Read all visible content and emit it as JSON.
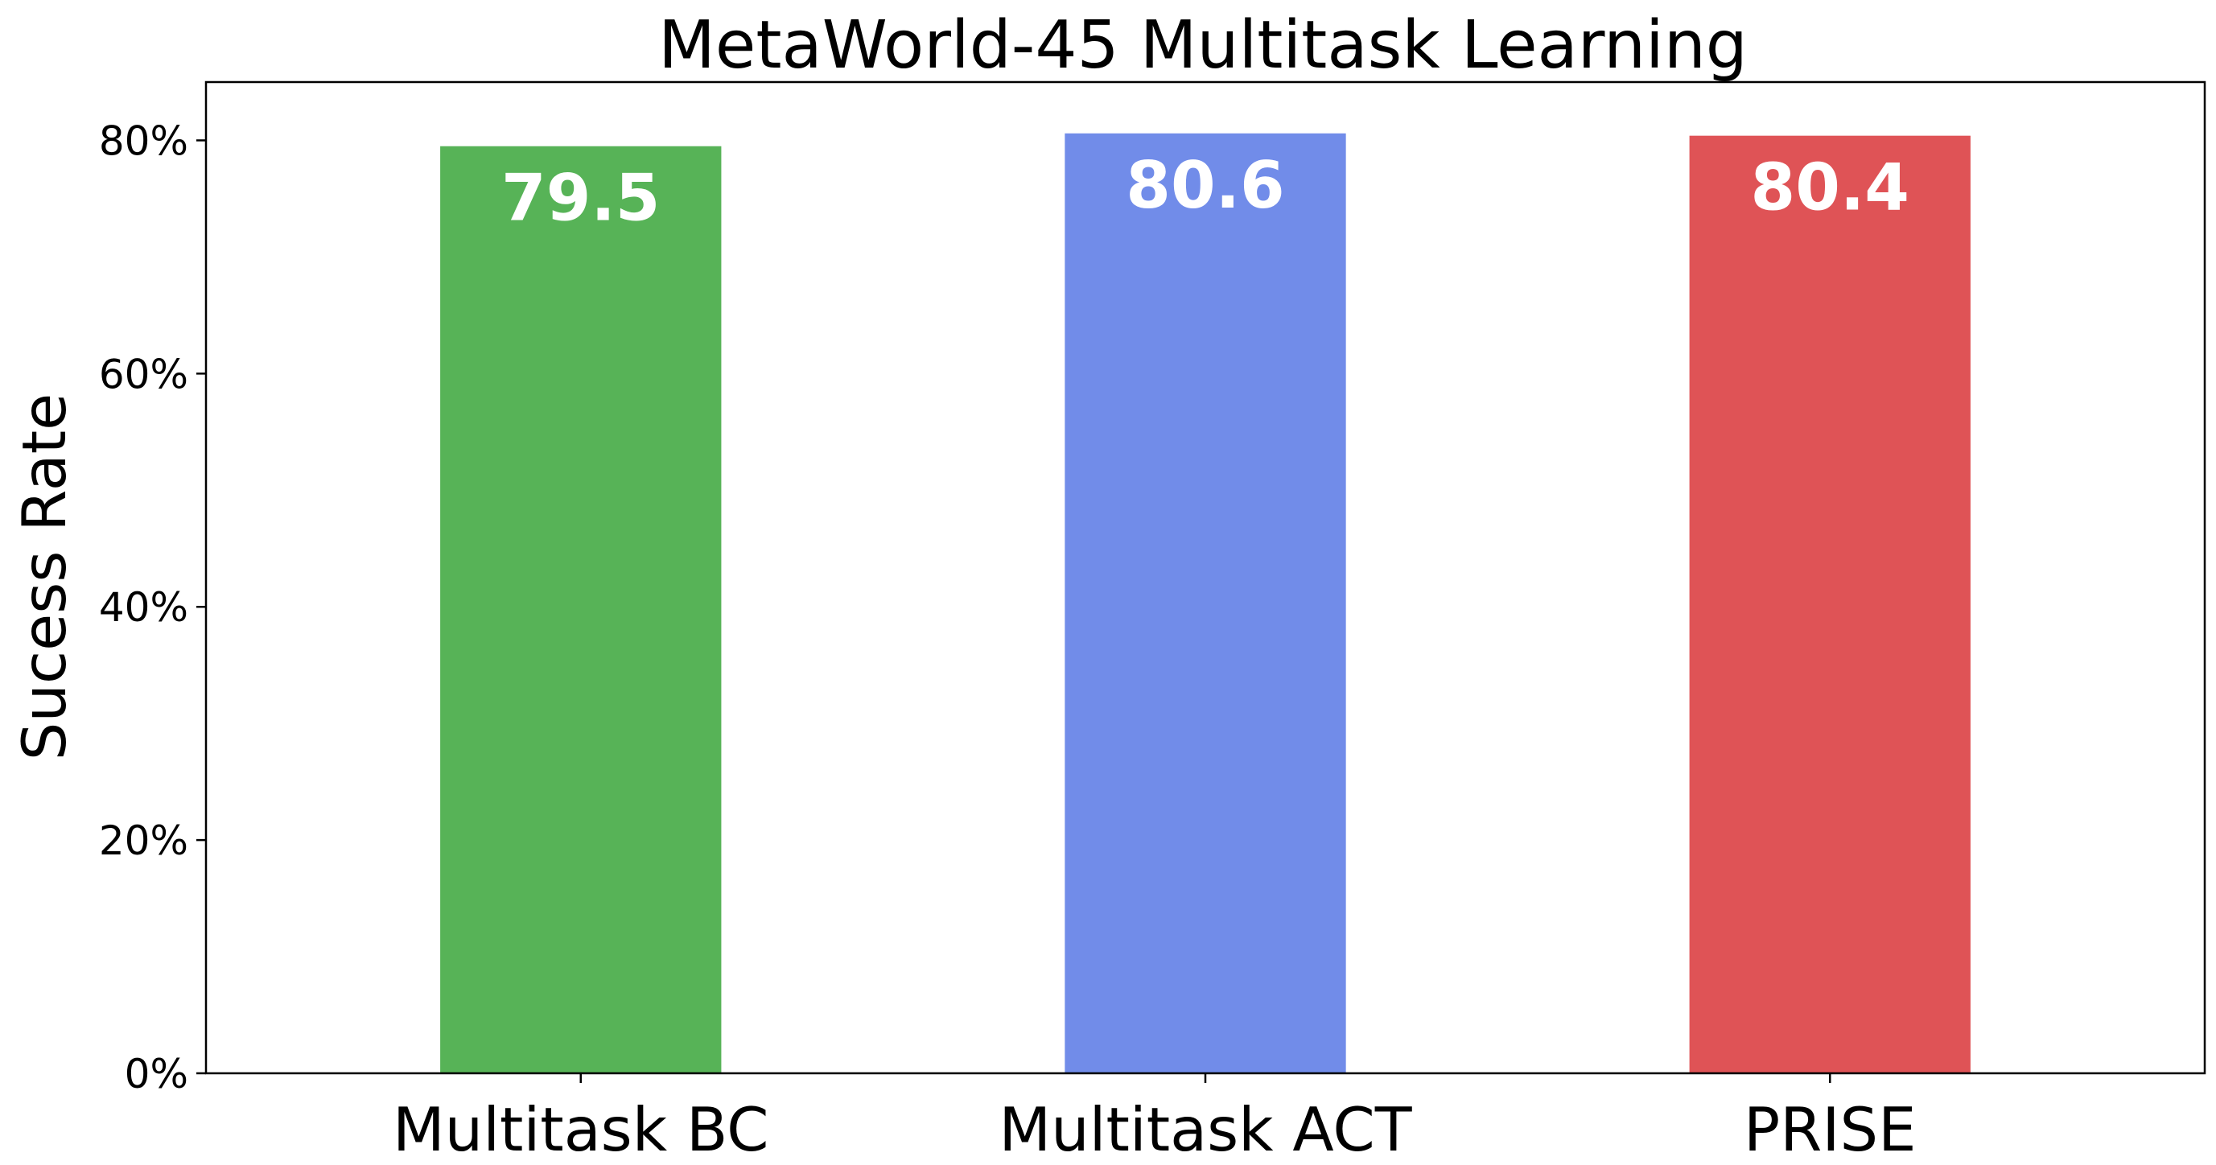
{
  "chart_data": {
    "type": "bar",
    "title": "MetaWorld-45 Multitask Learning",
    "xlabel": "",
    "ylabel": "Sucess Rate",
    "categories": [
      "Multitask BC",
      "Multitask ACT",
      "PRISE"
    ],
    "values": [
      79.5,
      80.6,
      80.4
    ],
    "value_labels": [
      "79.5",
      "80.6",
      "80.4"
    ],
    "colors": [
      "#57b357",
      "#718ce9",
      "#df5356"
    ],
    "ylim": [
      0,
      85
    ],
    "yticks": [
      0,
      20,
      40,
      60,
      80
    ],
    "ytick_labels": [
      "0%",
      "20%",
      "40%",
      "60%",
      "80%"
    ],
    "grid": false,
    "legend": "none"
  }
}
